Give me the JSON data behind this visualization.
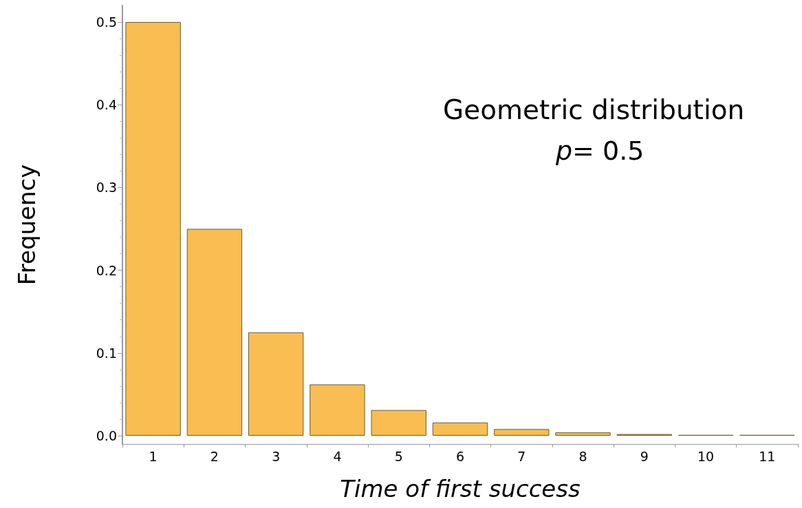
{
  "chart_data": {
    "type": "bar",
    "xlabel": "Time of first success",
    "ylabel": "Frequency",
    "categories": [
      "1",
      "2",
      "3",
      "4",
      "5",
      "6",
      "7",
      "8",
      "9",
      "10",
      "11"
    ],
    "values": [
      0.5,
      0.25,
      0.125,
      0.062,
      0.031,
      0.016,
      0.008,
      0.004,
      0.002,
      0.001,
      0.001
    ],
    "color": "#f9bd52",
    "ylim": [
      -0.01,
      0.52
    ],
    "yticks": [
      {
        "value": 0,
        "label": "0.0"
      },
      0.1,
      0.2,
      0.3,
      0.4,
      0.5
    ],
    "annotations": [
      "Geometric distribution",
      "p= 0.5"
    ],
    "grid": false
  }
}
